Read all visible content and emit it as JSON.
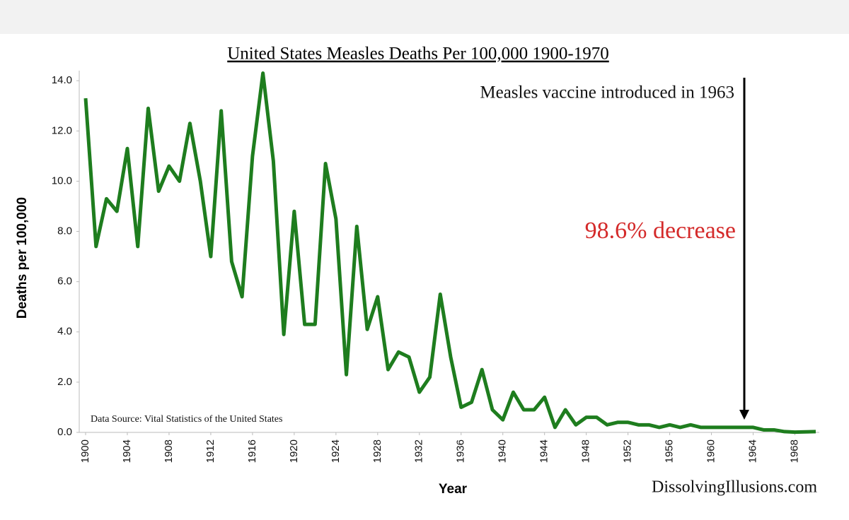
{
  "chart_data": {
    "type": "line",
    "title": "United States Measles Deaths Per 100,000 1900-1970",
    "x_label": "Year",
    "y_label": "Deaths per 100,000",
    "annotations": [
      "Measles vaccine introduced in 1963",
      "98.6% decrease",
      "Data Source:  Vital Statistics of the United States",
      "DissolvingIllusions.com"
    ],
    "x": [
      1900,
      1901,
      1902,
      1903,
      1904,
      1905,
      1906,
      1907,
      1908,
      1909,
      1910,
      1911,
      1912,
      1913,
      1914,
      1915,
      1916,
      1917,
      1918,
      1919,
      1920,
      1921,
      1922,
      1923,
      1924,
      1925,
      1926,
      1927,
      1928,
      1929,
      1930,
      1931,
      1932,
      1933,
      1934,
      1935,
      1936,
      1937,
      1938,
      1939,
      1940,
      1941,
      1942,
      1943,
      1944,
      1945,
      1946,
      1947,
      1948,
      1949,
      1950,
      1951,
      1952,
      1953,
      1954,
      1955,
      1956,
      1957,
      1958,
      1959,
      1960,
      1961,
      1962,
      1963,
      1964,
      1965,
      1966,
      1967,
      1968,
      1969,
      1970
    ],
    "series": [
      {
        "name": "Deaths per 100,000",
        "color": "#1e7d1e",
        "values": [
          13.3,
          7.4,
          9.3,
          8.8,
          11.3,
          7.4,
          12.9,
          9.6,
          10.6,
          10.0,
          12.3,
          10.0,
          7.0,
          12.8,
          6.8,
          5.4,
          11.0,
          14.3,
          10.8,
          3.9,
          8.8,
          4.3,
          4.3,
          10.7,
          8.5,
          2.3,
          8.2,
          4.1,
          5.4,
          2.5,
          3.2,
          3.0,
          1.6,
          2.2,
          5.5,
          3.0,
          1.0,
          1.2,
          2.5,
          0.9,
          0.5,
          1.6,
          0.9,
          0.9,
          1.4,
          0.2,
          0.9,
          0.3,
          0.6,
          0.6,
          0.3,
          0.4,
          0.4,
          0.3,
          0.3,
          0.2,
          0.3,
          0.2,
          0.3,
          0.2,
          0.2,
          0.2,
          0.2,
          0.2,
          0.2,
          0.1,
          0.1,
          0.03,
          0.01,
          0.02,
          0.03
        ]
      }
    ],
    "xlim": [
      1900,
      1970
    ],
    "xticks": [
      1900,
      1904,
      1908,
      1912,
      1916,
      1920,
      1924,
      1928,
      1932,
      1936,
      1940,
      1944,
      1948,
      1952,
      1956,
      1960,
      1964,
      1968
    ],
    "ylim": [
      0,
      14.4
    ],
    "yticks": [
      {
        "value": 0,
        "label": "0.0"
      },
      {
        "value": 2,
        "label": "2.0"
      },
      {
        "value": 4,
        "label": "4.0"
      },
      {
        "value": 6,
        "label": "6.0"
      },
      {
        "value": 8,
        "label": "8.0"
      },
      {
        "value": 10,
        "label": "10.0"
      },
      {
        "value": 12,
        "label": "12.0"
      },
      {
        "value": 14,
        "label": "14.0"
      }
    ],
    "grid": false
  }
}
